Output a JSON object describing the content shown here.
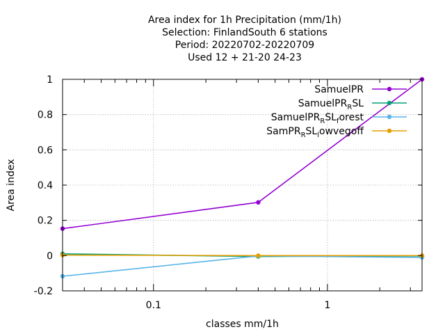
{
  "chart_data": {
    "type": "line",
    "title_lines": [
      "Area index  for 1h Precipitation (mm/1h)",
      "Selection: FinlandSouth      6 stations",
      "Period: 20220702-20220709",
      "Used  12 + 21-20 24-23"
    ],
    "xlabel": "classes mm/1h",
    "ylabel": "Area index",
    "xscale": "log",
    "xlim": [
      0.03,
      3.5
    ],
    "ylim": [
      -0.2,
      1.0
    ],
    "x_ticks": [
      {
        "value": 0.1,
        "label": "0.1"
      },
      {
        "value": 1,
        "label": "1"
      }
    ],
    "y_ticks": [
      {
        "value": -0.2,
        "label": "-0.2"
      },
      {
        "value": 0,
        "label": "0"
      },
      {
        "value": 0.2,
        "label": "0.2"
      },
      {
        "value": 0.4,
        "label": "0.4"
      },
      {
        "value": 0.6,
        "label": "0.6"
      },
      {
        "value": 0.8,
        "label": "0.8"
      },
      {
        "value": 1.0,
        "label": "1"
      }
    ],
    "grid": true,
    "legend_position": "top-right",
    "series": [
      {
        "name": "SamuelPR",
        "color": "#9400d3",
        "x": [
          0.03,
          0.4,
          3.5
        ],
        "y": [
          0.153,
          0.302,
          1.0
        ]
      },
      {
        "name": "SamuelPR_R SL",
        "legend_parts": [
          [
            "SamuelPR",
            ""
          ],
          [
            "R",
            "sub"
          ],
          [
            "SL",
            ""
          ]
        ],
        "color": "#009e73",
        "x": [
          0.03,
          0.4,
          3.5
        ],
        "y": [
          0.01,
          -0.005,
          -0.002
        ]
      },
      {
        "name": "SamuelPR_R SL_f orest",
        "legend_parts": [
          [
            "SamuelPR",
            ""
          ],
          [
            "R",
            "sub"
          ],
          [
            "SL",
            ""
          ],
          [
            "f",
            "sub"
          ],
          [
            "orest",
            ""
          ]
        ],
        "color": "#56b4e9",
        "x": [
          0.03,
          0.4,
          3.5
        ],
        "y": [
          -0.117,
          -0.002,
          -0.01
        ]
      },
      {
        "name": "SamPR_R SL_l owvegoff",
        "legend_parts": [
          [
            "SamPR",
            ""
          ],
          [
            "R",
            "sub"
          ],
          [
            "SL",
            ""
          ],
          [
            "l",
            "sub"
          ],
          [
            "owvegoff",
            ""
          ]
        ],
        "color": "#e69f00",
        "x": [
          0.03,
          0.4,
          3.5
        ],
        "y": [
          0.003,
          0.0,
          0.0
        ]
      }
    ]
  }
}
